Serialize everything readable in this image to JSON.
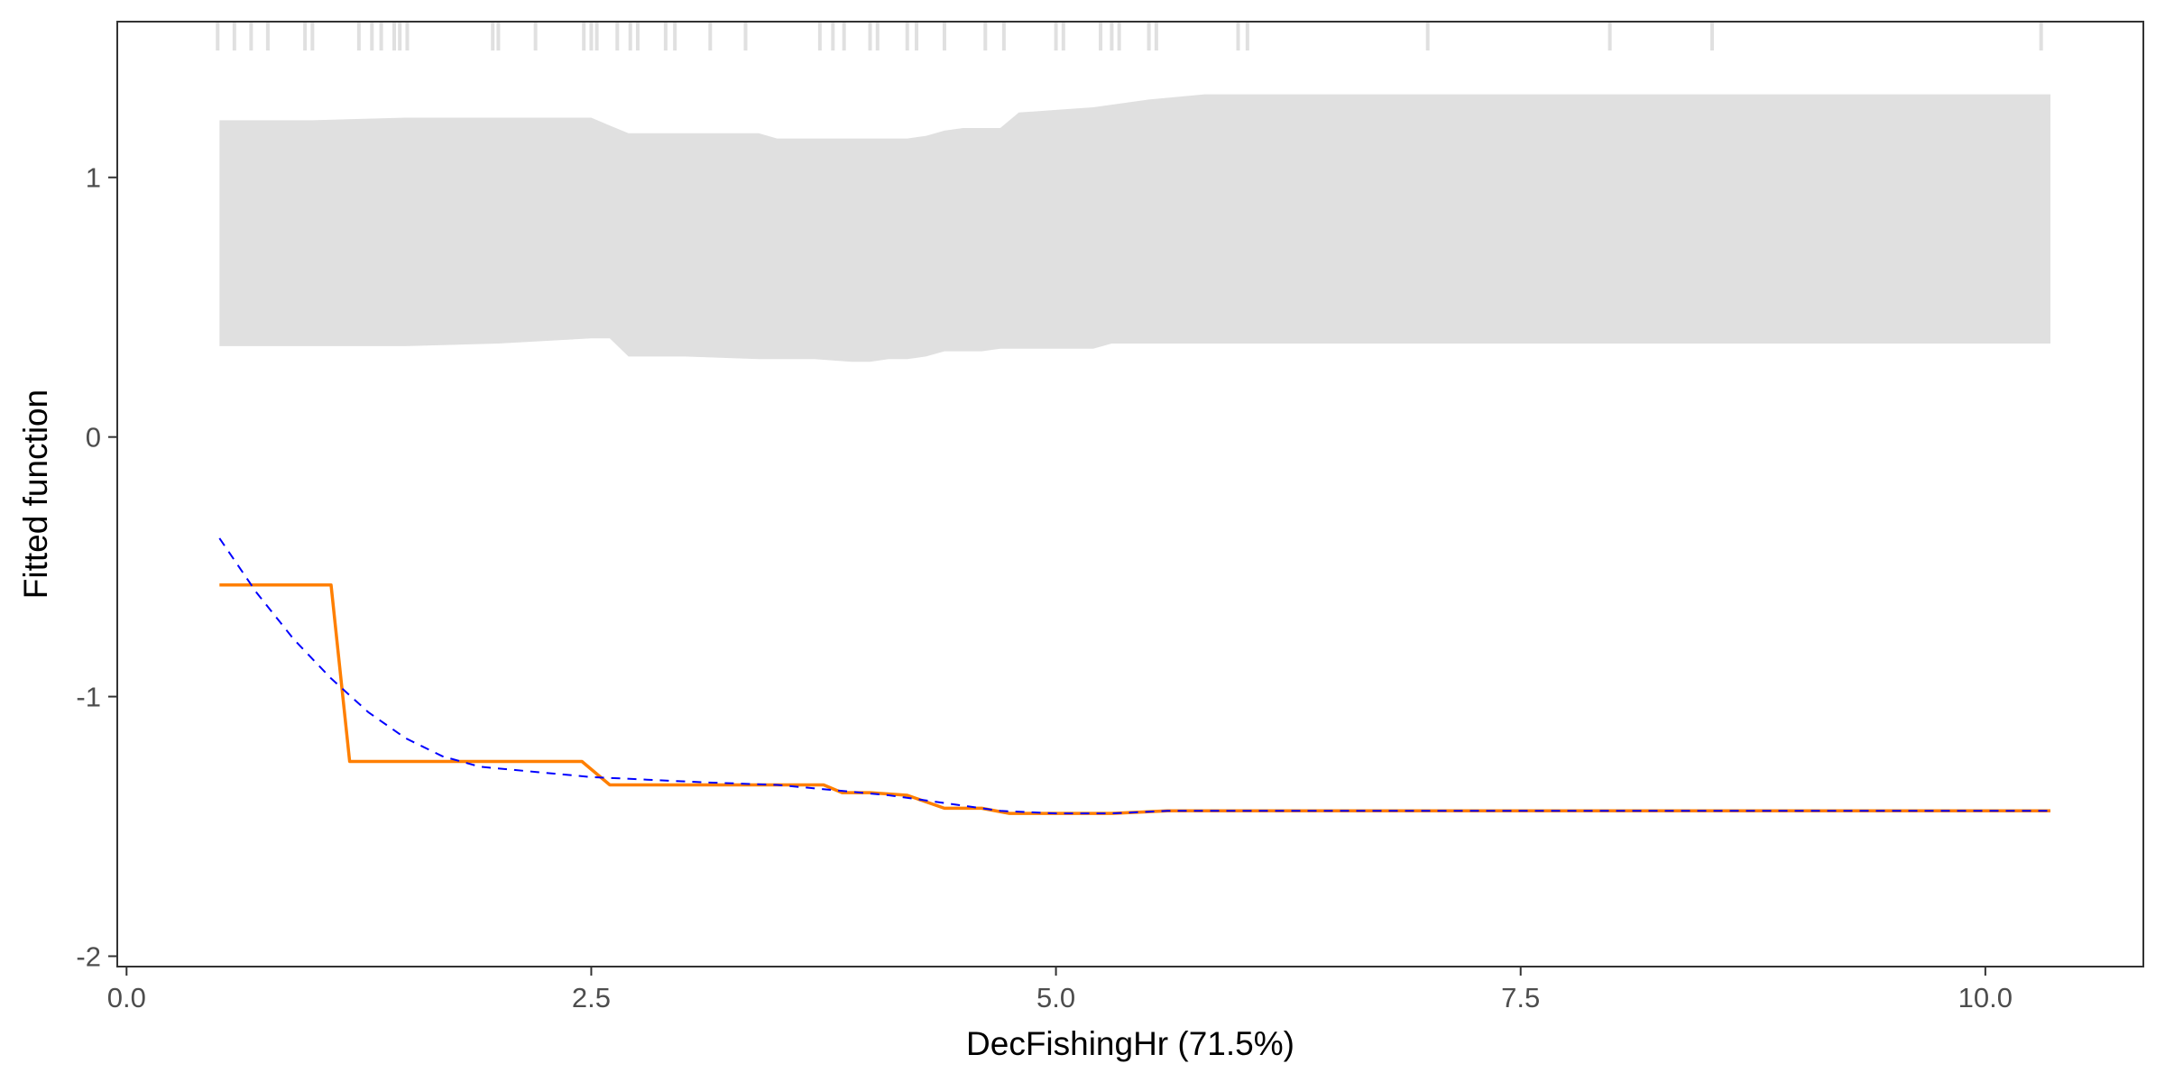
{
  "chart_data": {
    "type": "line",
    "title": "",
    "xlabel": "DecFishingHr  (71.5%)",
    "ylabel": "Fitted function",
    "xlim": [
      -0.05,
      10.85
    ],
    "ylim": [
      -2.04,
      1.6
    ],
    "x_ticks": [
      {
        "value": 0.0,
        "label": "0.0"
      },
      {
        "value": 2.5,
        "label": "2.5"
      },
      {
        "value": 5.0,
        "label": "5.0"
      },
      {
        "value": 7.5,
        "label": "7.5"
      },
      {
        "value": 10.0,
        "label": "10.0"
      }
    ],
    "y_ticks": [
      {
        "value": 1,
        "label": "1"
      },
      {
        "value": 0,
        "label": "0"
      },
      {
        "value": -1,
        "label": "-1"
      },
      {
        "value": -2,
        "label": "-2"
      }
    ],
    "grid": false,
    "colors": {
      "fitted": "#ff7f00",
      "smooth": "#0000ff",
      "band": "#e0e0e0",
      "rug": "#e0e0e0",
      "axis": "#333333"
    },
    "rug": [
      0.49,
      0.58,
      0.67,
      0.76,
      0.96,
      1.0,
      1.25,
      1.32,
      1.37,
      1.44,
      1.47,
      1.51,
      1.97,
      2.0,
      2.2,
      2.46,
      2.5,
      2.53,
      2.64,
      2.71,
      2.75,
      2.9,
      2.95,
      3.14,
      3.33,
      3.73,
      3.8,
      3.86,
      4.0,
      4.04,
      4.2,
      4.25,
      4.4,
      4.62,
      4.72,
      5.0,
      5.04,
      5.24,
      5.3,
      5.34,
      5.5,
      5.54,
      5.98,
      6.03,
      7.0,
      7.98,
      8.53,
      10.3
    ],
    "band": {
      "x": [
        0.5,
        1.0,
        1.5,
        2.0,
        2.5,
        2.6,
        2.7,
        3.0,
        3.4,
        3.5,
        3.7,
        3.9,
        4.0,
        4.1,
        4.2,
        4.3,
        4.4,
        4.5,
        4.6,
        4.7,
        4.8,
        5.0,
        5.2,
        5.3,
        5.5,
        5.8,
        6.5,
        7.5,
        8.5,
        9.5,
        10.35
      ],
      "upper": [
        1.22,
        1.22,
        1.23,
        1.23,
        1.23,
        1.2,
        1.17,
        1.17,
        1.17,
        1.15,
        1.15,
        1.15,
        1.15,
        1.15,
        1.15,
        1.16,
        1.18,
        1.19,
        1.19,
        1.19,
        1.25,
        1.26,
        1.27,
        1.28,
        1.3,
        1.32,
        1.32,
        1.32,
        1.32,
        1.32,
        1.32
      ],
      "lower": [
        0.35,
        0.35,
        0.35,
        0.36,
        0.38,
        0.38,
        0.31,
        0.31,
        0.3,
        0.3,
        0.3,
        0.29,
        0.29,
        0.3,
        0.3,
        0.31,
        0.33,
        0.33,
        0.33,
        0.34,
        0.34,
        0.34,
        0.34,
        0.36,
        0.36,
        0.36,
        0.36,
        0.36,
        0.36,
        0.36,
        0.36
      ]
    },
    "series": [
      {
        "name": "",
        "style": "solid",
        "x": [
          0.5,
          1.1,
          1.2,
          1.8,
          2.45,
          2.6,
          2.7,
          3.5,
          3.75,
          3.85,
          4.0,
          4.2,
          4.4,
          4.6,
          4.75,
          5.0,
          5.3,
          5.6,
          10.35
        ],
        "y": [
          -0.57,
          -0.57,
          -1.25,
          -1.25,
          -1.25,
          -1.34,
          -1.34,
          -1.34,
          -1.34,
          -1.37,
          -1.37,
          -1.38,
          -1.43,
          -1.43,
          -1.45,
          -1.45,
          -1.45,
          -1.44,
          -1.44
        ]
      },
      {
        "name": "",
        "style": "dashed",
        "x": [
          0.5,
          0.7,
          0.9,
          1.1,
          1.3,
          1.5,
          1.7,
          1.9,
          2.2,
          2.5,
          2.8,
          3.1,
          3.5,
          3.8,
          4.1,
          4.4,
          4.7,
          5.0,
          5.3,
          5.6,
          6.0,
          10.35
        ],
        "y": [
          -0.39,
          -0.6,
          -0.78,
          -0.93,
          -1.06,
          -1.16,
          -1.23,
          -1.27,
          -1.29,
          -1.31,
          -1.32,
          -1.33,
          -1.34,
          -1.36,
          -1.38,
          -1.41,
          -1.44,
          -1.45,
          -1.45,
          -1.44,
          -1.44,
          -1.44
        ]
      }
    ]
  }
}
